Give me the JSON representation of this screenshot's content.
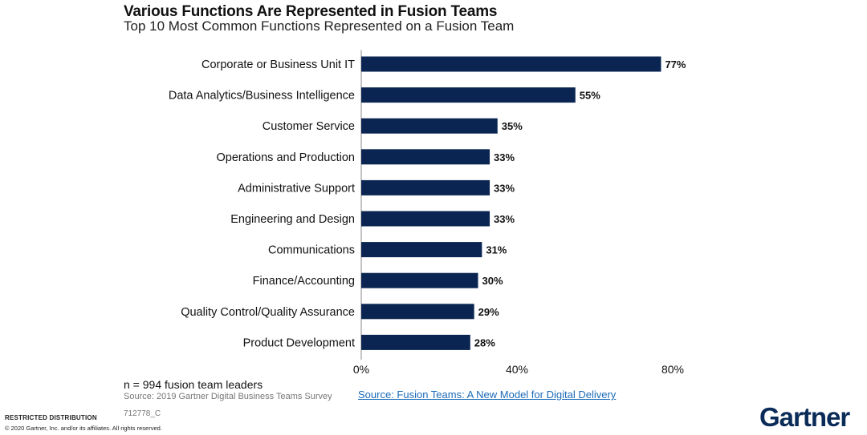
{
  "chart_data": {
    "type": "bar",
    "orientation": "horizontal",
    "title": "Various Functions Are Represented in Fusion Teams",
    "subtitle": "Top 10 Most Common Functions Represented on a Fusion Team",
    "categories": [
      "Corporate or Business Unit IT",
      "Data Analytics/Business Intelligence",
      "Customer Service",
      "Operations and Production",
      "Administrative Support",
      "Engineering and Design",
      "Communications",
      "Finance/Accounting",
      "Quality Control/Quality Assurance",
      "Product Development"
    ],
    "values": [
      77,
      55,
      35,
      33,
      33,
      33,
      31,
      30,
      29,
      28
    ],
    "value_labels": [
      "77%",
      "55%",
      "35%",
      "33%",
      "33%",
      "33%",
      "31%",
      "30%",
      "29%",
      "28%"
    ],
    "xlim": [
      0,
      80
    ],
    "xticks": [
      0,
      40,
      80
    ],
    "xtick_labels": [
      "0%",
      "40%",
      "80%"
    ],
    "bar_color": "#0b2552",
    "grid": false,
    "legend": "none"
  },
  "footer": {
    "note": "n = 994 fusion team leaders",
    "source": "Source: 2019 Gartner Digital Business Teams Survey",
    "link": "Source: Fusion Teams: A New Model for Digital Delivery",
    "doc_id": "712778_C",
    "restricted": "RESTRICTED DISTRIBUTION",
    "copyright": "© 2020 Gartner, Inc. and/or its affiliates. All rights reserved.",
    "logo": "Gartner"
  }
}
